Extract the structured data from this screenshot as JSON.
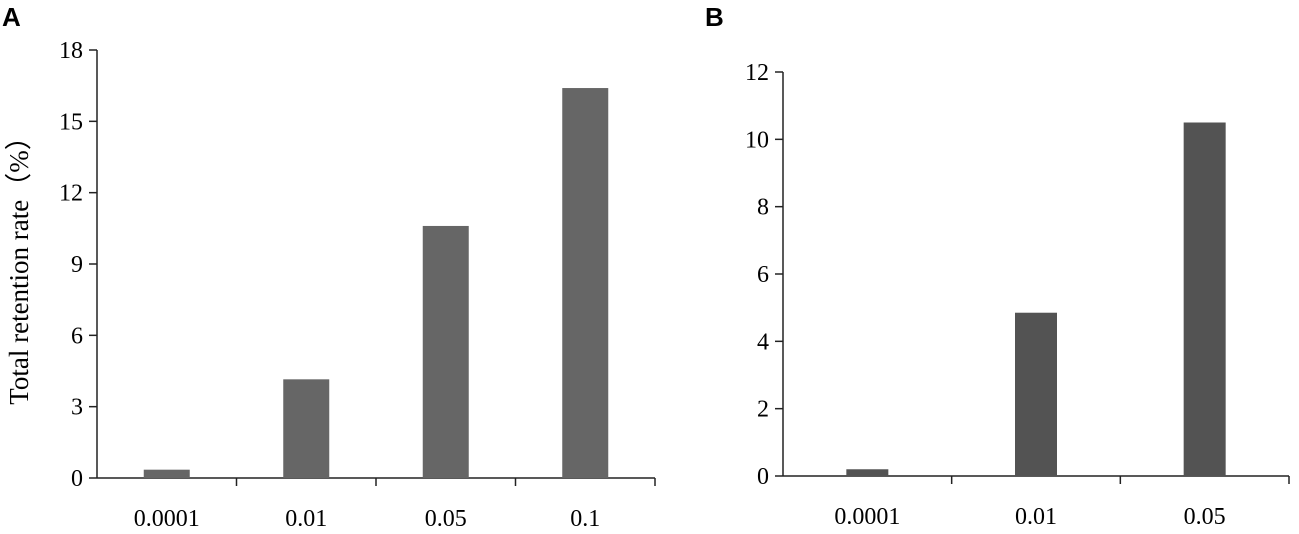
{
  "panels": {
    "a": {
      "letter": "A"
    },
    "b": {
      "letter": "B"
    }
  },
  "colors": {
    "bar_a": "#666666",
    "bar_b": "#535353",
    "axis": "#222222"
  },
  "chart_data": [
    {
      "type": "bar",
      "panel": "A",
      "categories": [
        "0.0001",
        "0.01",
        "0.05",
        "0.1"
      ],
      "values": [
        0.35,
        4.15,
        10.6,
        16.4
      ],
      "ylabel": "Total retention rate（%）",
      "xlabel": "",
      "ylim": [
        0,
        18
      ],
      "yticks": [
        0,
        3,
        6,
        9,
        12,
        15,
        18
      ],
      "grid": false
    },
    {
      "type": "bar",
      "panel": "B",
      "categories": [
        "0.0001",
        "0.01",
        "0.05"
      ],
      "values": [
        0.2,
        4.85,
        10.5
      ],
      "ylabel": "",
      "xlabel": "",
      "ylim": [
        0,
        12
      ],
      "yticks": [
        0,
        2,
        4,
        6,
        8,
        10,
        12
      ],
      "grid": false
    }
  ]
}
